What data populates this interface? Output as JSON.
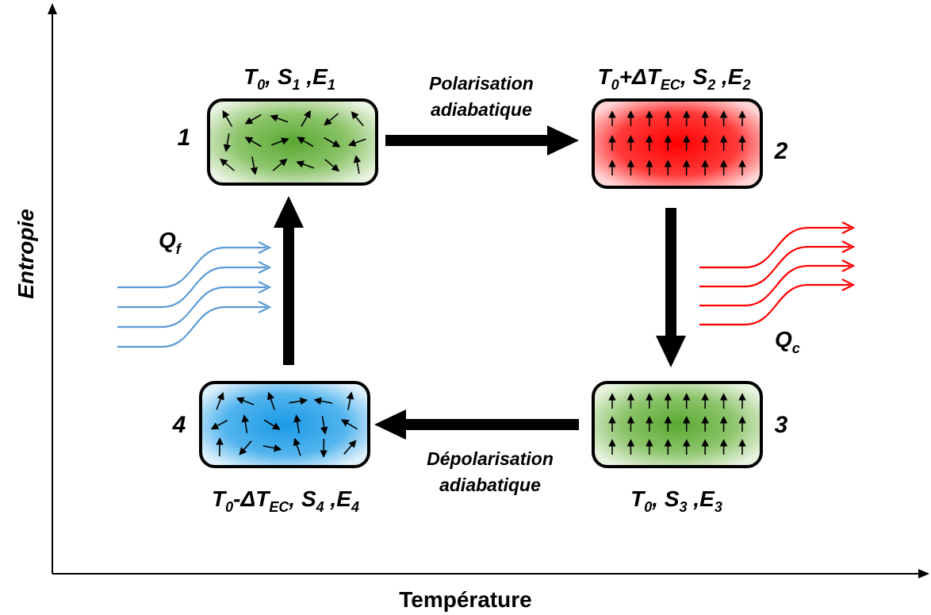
{
  "diagram": {
    "axes": {
      "x_label": "Température",
      "y_label": "Entropie"
    },
    "states": [
      {
        "number": "1",
        "T": "T",
        "T_sub": "0",
        "T_suffix": "",
        "T_suffix_sub": "",
        "S": "S",
        "S_sub": "1",
        "E": "E",
        "E_sub": "1",
        "color": "#5aa832",
        "dipoles": "random"
      },
      {
        "number": "2",
        "T": "T",
        "T_sub": "0",
        "T_suffix": "+ΔT",
        "T_suffix_sub": "EC",
        "S": "S",
        "S_sub": "2",
        "E": "E",
        "E_sub": "2",
        "color": "#ff0000",
        "dipoles": "aligned"
      },
      {
        "number": "3",
        "T": "T",
        "T_sub": "0",
        "T_suffix": "",
        "T_suffix_sub": "",
        "S": "S",
        "S_sub": "3",
        "E": "E",
        "E_sub": "3",
        "color": "#5aa832",
        "dipoles": "aligned"
      },
      {
        "number": "4",
        "T": "T",
        "T_sub": "0",
        "T_suffix": "-ΔT",
        "T_suffix_sub": "EC",
        "S": "S",
        "S_sub": "4",
        "E": "E",
        "E_sub": "4",
        "color": "#1a9ae6",
        "dipoles": "random"
      }
    ],
    "processes": {
      "polarisation": {
        "line1": "Polarisation",
        "line2": "adiabatique"
      },
      "depolarisation": {
        "line1": "Dépolarisation",
        "line2": "adiabatique"
      }
    },
    "heat": {
      "cold": {
        "symbol": "Q",
        "sub": "f",
        "color": "#5b9bd5"
      },
      "hot": {
        "symbol": "Q",
        "sub": "c",
        "color": "#ff0000"
      }
    }
  }
}
